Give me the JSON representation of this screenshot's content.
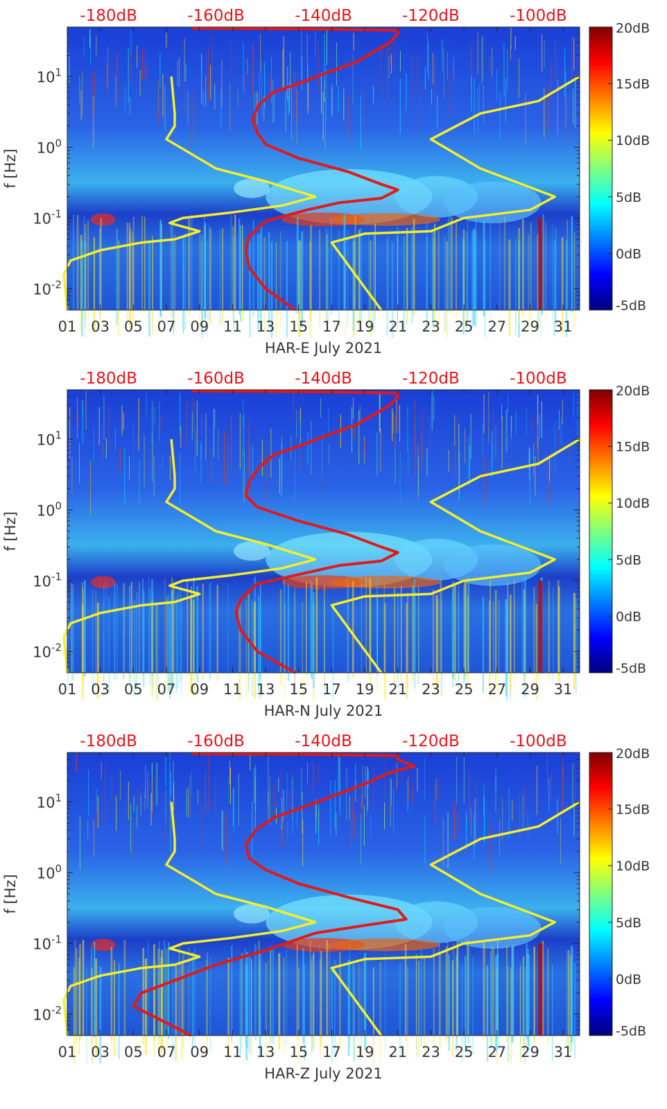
{
  "colors": {
    "top_axis_label": "#e8131b",
    "yellow_curve": "#f5ee2a",
    "red_curve": "#e01a1a",
    "text": "#333333"
  },
  "chart_data": [
    {
      "type": "heatmap",
      "title": "",
      "xlabel": "HAR-E July 2021",
      "ylabel": "f [Hz]",
      "x_tick_labels": [
        "01",
        "03",
        "05",
        "07",
        "09",
        "11",
        "13",
        "15",
        "17",
        "19",
        "21",
        "23",
        "25",
        "27",
        "29",
        "31"
      ],
      "x_tick_days": [
        1,
        3,
        5,
        7,
        9,
        11,
        13,
        15,
        17,
        19,
        21,
        23,
        25,
        27,
        29,
        31
      ],
      "xlim_days": [
        1,
        32
      ],
      "y_scale": "log",
      "ylim_hz": [
        0.005,
        50
      ],
      "y_tick_labels": [
        "10^-2",
        "10^-1",
        "10^0",
        "10^1"
      ],
      "y_tick_values": [
        0.01,
        0.1,
        1,
        10
      ],
      "top_axis_labels": [
        "-180dB",
        "-160dB",
        "-140dB",
        "-120dB",
        "-100dB"
      ],
      "top_axis_day_positions": [
        3.5,
        10,
        16.5,
        23,
        29.5
      ],
      "colorbar": {
        "labels": [
          "20dB",
          "15dB",
          "10dB",
          "5dB",
          "0dB",
          "-5dB"
        ],
        "values": [
          20,
          15,
          10,
          5,
          0,
          -5
        ],
        "range": [
          -5,
          20
        ],
        "colormap": "jet"
      },
      "series": [
        {
          "name": "yellow-low-noise-model",
          "points": [
            [
              1,
              0.005
            ],
            [
              0.8,
              0.016
            ],
            [
              1.2,
              0.025
            ],
            [
              3,
              0.035
            ],
            [
              5.5,
              0.045
            ],
            [
              7.5,
              0.05
            ],
            [
              9,
              0.065
            ],
            [
              8.5,
              0.07
            ],
            [
              7.2,
              0.085
            ],
            [
              8,
              0.1
            ],
            [
              11,
              0.12
            ],
            [
              14,
              0.15
            ],
            [
              16,
              0.2
            ],
            [
              13,
              0.33
            ],
            [
              10,
              0.5
            ],
            [
              7,
              1.3
            ],
            [
              7.5,
              2
            ],
            [
              7.5,
              3
            ],
            [
              7.3,
              10
            ]
          ]
        },
        {
          "name": "yellow-high-noise-model",
          "points": [
            [
              20,
              0.005
            ],
            [
              17,
              0.045
            ],
            [
              19,
              0.06
            ],
            [
              23,
              0.065
            ],
            [
              25,
              0.1
            ],
            [
              29,
              0.13
            ],
            [
              30.5,
              0.2
            ],
            [
              26,
              0.5
            ],
            [
              23,
              1.3
            ],
            [
              26,
              3
            ],
            [
              29.5,
              4.5
            ],
            [
              32,
              10
            ]
          ]
        },
        {
          "name": "red-spectrum-curve",
          "points": [
            [
              14.8,
              0.005
            ],
            [
              13,
              0.01
            ],
            [
              12,
              0.02
            ],
            [
              11.8,
              0.035
            ],
            [
              12,
              0.055
            ],
            [
              13,
              0.09
            ],
            [
              15.5,
              0.13
            ],
            [
              17.5,
              0.165
            ],
            [
              20,
              0.19
            ],
            [
              21,
              0.25
            ],
            [
              20,
              0.3
            ],
            [
              18,
              0.45
            ],
            [
              15,
              0.7
            ],
            [
              13,
              1.1
            ],
            [
              12.5,
              1.6
            ],
            [
              12.2,
              2.5
            ],
            [
              12.6,
              4
            ],
            [
              13.5,
              6
            ],
            [
              15,
              8
            ],
            [
              17,
              12
            ],
            [
              18.5,
              16
            ],
            [
              19.5,
              22
            ],
            [
              20.5,
              30
            ],
            [
              21,
              40
            ],
            [
              21,
              45
            ],
            [
              16,
              47
            ],
            [
              8.5,
              48
            ]
          ]
        }
      ]
    },
    {
      "type": "heatmap",
      "title": "",
      "xlabel": "HAR-N July 2021",
      "ylabel": "f [Hz]",
      "x_tick_labels": [
        "01",
        "03",
        "05",
        "07",
        "09",
        "11",
        "13",
        "15",
        "17",
        "19",
        "21",
        "23",
        "25",
        "27",
        "29",
        "31"
      ],
      "x_tick_days": [
        1,
        3,
        5,
        7,
        9,
        11,
        13,
        15,
        17,
        19,
        21,
        23,
        25,
        27,
        29,
        31
      ],
      "xlim_days": [
        1,
        32
      ],
      "y_scale": "log",
      "ylim_hz": [
        0.005,
        50
      ],
      "y_tick_labels": [
        "10^-2",
        "10^-1",
        "10^0",
        "10^1"
      ],
      "y_tick_values": [
        0.01,
        0.1,
        1,
        10
      ],
      "top_axis_labels": [
        "-180dB",
        "-160dB",
        "-140dB",
        "-120dB",
        "-100dB"
      ],
      "top_axis_day_positions": [
        3.5,
        10,
        16.5,
        23,
        29.5
      ],
      "colorbar": {
        "labels": [
          "20dB",
          "15dB",
          "10dB",
          "5dB",
          "0dB",
          "-5dB"
        ],
        "values": [
          20,
          15,
          10,
          5,
          0,
          -5
        ],
        "range": [
          -5,
          20
        ],
        "colormap": "jet"
      },
      "series": [
        {
          "name": "yellow-low-noise-model",
          "points": [
            [
              1,
              0.005
            ],
            [
              0.8,
              0.016
            ],
            [
              1.2,
              0.025
            ],
            [
              3,
              0.035
            ],
            [
              5.5,
              0.045
            ],
            [
              7.5,
              0.05
            ],
            [
              9,
              0.065
            ],
            [
              8.5,
              0.07
            ],
            [
              7.2,
              0.085
            ],
            [
              8,
              0.1
            ],
            [
              11,
              0.12
            ],
            [
              14,
              0.15
            ],
            [
              16,
              0.2
            ],
            [
              13,
              0.33
            ],
            [
              10,
              0.5
            ],
            [
              7,
              1.3
            ],
            [
              7.5,
              2
            ],
            [
              7.5,
              3
            ],
            [
              7.3,
              10
            ]
          ]
        },
        {
          "name": "yellow-high-noise-model",
          "points": [
            [
              20,
              0.005
            ],
            [
              17,
              0.045
            ],
            [
              19,
              0.06
            ],
            [
              23,
              0.065
            ],
            [
              25,
              0.1
            ],
            [
              29,
              0.13
            ],
            [
              30.5,
              0.2
            ],
            [
              26,
              0.5
            ],
            [
              23,
              1.3
            ],
            [
              26,
              3
            ],
            [
              29.5,
              4.5
            ],
            [
              32,
              10
            ]
          ]
        },
        {
          "name": "red-spectrum-curve",
          "points": [
            [
              14.8,
              0.005
            ],
            [
              12.5,
              0.01
            ],
            [
              11.5,
              0.02
            ],
            [
              11.2,
              0.035
            ],
            [
              11.5,
              0.055
            ],
            [
              12.5,
              0.09
            ],
            [
              15.5,
              0.13
            ],
            [
              17.5,
              0.165
            ],
            [
              20,
              0.19
            ],
            [
              21,
              0.25
            ],
            [
              20,
              0.3
            ],
            [
              18,
              0.45
            ],
            [
              15,
              0.7
            ],
            [
              12.5,
              1.1
            ],
            [
              11.8,
              1.6
            ],
            [
              12,
              2.5
            ],
            [
              12.6,
              4
            ],
            [
              13.5,
              6
            ],
            [
              15,
              8
            ],
            [
              17,
              12
            ],
            [
              18.5,
              16
            ],
            [
              19.5,
              22
            ],
            [
              20.5,
              30
            ],
            [
              21,
              40
            ],
            [
              21,
              45
            ],
            [
              16,
              47
            ],
            [
              8.5,
              48
            ]
          ]
        }
      ]
    },
    {
      "type": "heatmap",
      "title": "",
      "xlabel": "HAR-Z July 2021",
      "ylabel": "f [Hz]",
      "x_tick_labels": [
        "01",
        "03",
        "05",
        "07",
        "09",
        "11",
        "13",
        "15",
        "17",
        "19",
        "21",
        "23",
        "25",
        "27",
        "29",
        "31"
      ],
      "x_tick_days": [
        1,
        3,
        5,
        7,
        9,
        11,
        13,
        15,
        17,
        19,
        21,
        23,
        25,
        27,
        29,
        31
      ],
      "xlim_days": [
        1,
        32
      ],
      "y_scale": "log",
      "ylim_hz": [
        0.005,
        50
      ],
      "y_tick_labels": [
        "10^-2",
        "10^-1",
        "10^0",
        "10^1"
      ],
      "y_tick_values": [
        0.01,
        0.1,
        1,
        10
      ],
      "top_axis_labels": [
        "-180dB",
        "-160dB",
        "-140dB",
        "-120dB",
        "-100dB"
      ],
      "top_axis_day_positions": [
        3.5,
        10,
        16.5,
        23,
        29.5
      ],
      "colorbar": {
        "labels": [
          "20dB",
          "15dB",
          "10dB",
          "5dB",
          "0dB",
          "-5dB"
        ],
        "values": [
          20,
          15,
          10,
          5,
          0,
          -5
        ],
        "range": [
          -5,
          20
        ],
        "colormap": "jet"
      },
      "series": [
        {
          "name": "yellow-low-noise-model",
          "points": [
            [
              1,
              0.005
            ],
            [
              0.8,
              0.016
            ],
            [
              1.2,
              0.025
            ],
            [
              3,
              0.035
            ],
            [
              5.5,
              0.045
            ],
            [
              7.5,
              0.05
            ],
            [
              9,
              0.065
            ],
            [
              8.5,
              0.07
            ],
            [
              7.2,
              0.085
            ],
            [
              8,
              0.1
            ],
            [
              11,
              0.12
            ],
            [
              14,
              0.15
            ],
            [
              16,
              0.2
            ],
            [
              13,
              0.33
            ],
            [
              10,
              0.5
            ],
            [
              7,
              1.3
            ],
            [
              7.5,
              2
            ],
            [
              7.5,
              3
            ],
            [
              7.3,
              10
            ]
          ]
        },
        {
          "name": "yellow-high-noise-model",
          "points": [
            [
              20,
              0.005
            ],
            [
              17,
              0.045
            ],
            [
              19,
              0.06
            ],
            [
              23,
              0.065
            ],
            [
              25,
              0.1
            ],
            [
              29,
              0.13
            ],
            [
              30.5,
              0.2
            ],
            [
              26,
              0.5
            ],
            [
              23,
              1.3
            ],
            [
              26,
              3
            ],
            [
              29.5,
              4.5
            ],
            [
              32,
              10
            ]
          ]
        },
        {
          "name": "red-spectrum-curve",
          "points": [
            [
              8.5,
              0.005
            ],
            [
              5,
              0.013
            ],
            [
              5.5,
              0.02
            ],
            [
              7.5,
              0.03
            ],
            [
              10,
              0.05
            ],
            [
              13,
              0.08
            ],
            [
              16,
              0.14
            ],
            [
              19,
              0.18
            ],
            [
              21.5,
              0.22
            ],
            [
              21,
              0.3
            ],
            [
              18,
              0.45
            ],
            [
              15,
              0.7
            ],
            [
              13,
              1.1
            ],
            [
              12,
              1.6
            ],
            [
              11.8,
              2.5
            ],
            [
              12.4,
              4
            ],
            [
              13.5,
              6
            ],
            [
              15,
              8
            ],
            [
              17,
              12
            ],
            [
              19,
              18
            ],
            [
              20.5,
              26
            ],
            [
              22,
              32
            ],
            [
              21,
              40
            ],
            [
              21,
              45
            ],
            [
              16,
              47
            ],
            [
              8.5,
              48
            ]
          ]
        }
      ]
    }
  ]
}
